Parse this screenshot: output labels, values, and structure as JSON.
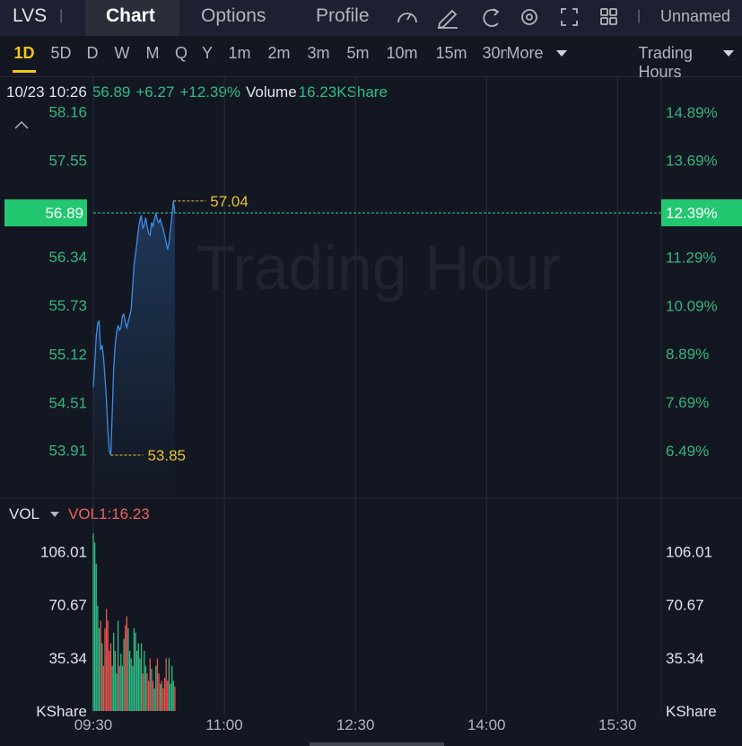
{
  "toolbar": {
    "symbol": "LVS",
    "tabs": [
      "Chart",
      "Options",
      "Profile"
    ],
    "layout_name": "Unnamed"
  },
  "periods": {
    "items": [
      "1D",
      "5D",
      "D",
      "W",
      "M",
      "Q",
      "Y",
      "1m",
      "2m",
      "3m",
      "5m",
      "10m",
      "15m",
      "30m"
    ],
    "more": "More",
    "session": "Trading Hours"
  },
  "quote": {
    "datetime": "10/23 10:26",
    "price": "56.89",
    "change": "+6.27",
    "change_pct": "+12.39%",
    "volume_label": "Volume",
    "volume": "16.23KShare"
  },
  "chart_data": [
    {
      "type": "line",
      "watermark": "Trading Hour",
      "color": "#3d8de6",
      "grid": true,
      "x": [
        "09:30",
        "09:31",
        "09:32",
        "09:33",
        "09:34",
        "09:35",
        "09:36",
        "09:37",
        "09:38",
        "09:39",
        "09:40",
        "09:41",
        "09:42",
        "09:43",
        "09:44",
        "09:45",
        "09:46",
        "09:47",
        "09:48",
        "09:49",
        "09:50",
        "09:51",
        "09:52",
        "09:53",
        "09:54",
        "09:55",
        "09:56",
        "09:57",
        "09:58",
        "09:59",
        "10:00",
        "10:01",
        "10:02",
        "10:03",
        "10:04",
        "10:05",
        "10:06",
        "10:07",
        "10:08",
        "10:09",
        "10:10",
        "10:11",
        "10:12",
        "10:13",
        "10:14",
        "10:15",
        "10:16",
        "10:17",
        "10:18",
        "10:19",
        "10:20",
        "10:21",
        "10:22",
        "10:23",
        "10:24",
        "10:25",
        "10:26"
      ],
      "values": [
        54.7,
        55.0,
        55.34,
        55.51,
        55.53,
        55.17,
        55.23,
        55.08,
        54.83,
        54.55,
        54.16,
        53.9,
        53.85,
        54.38,
        54.94,
        55.23,
        55.39,
        55.48,
        55.42,
        55.45,
        55.6,
        55.62,
        55.51,
        55.45,
        55.53,
        55.6,
        55.68,
        55.96,
        56.24,
        56.38,
        56.52,
        56.69,
        56.8,
        56.86,
        56.69,
        56.74,
        56.83,
        56.72,
        56.63,
        56.61,
        56.77,
        56.72,
        56.82,
        56.88,
        56.8,
        56.77,
        56.81,
        56.74,
        56.69,
        56.61,
        56.52,
        56.43,
        56.52,
        56.69,
        56.86,
        57.04,
        56.89
      ],
      "xlim": [
        "09:30",
        "16:00"
      ],
      "xticks": [
        "09:30",
        "11:00",
        "12:30",
        "14:00",
        "15:30"
      ],
      "ylim": [
        53.31,
        58.57
      ],
      "yticks": [
        53.91,
        54.51,
        55.12,
        55.73,
        56.34,
        57.55,
        58.16
      ],
      "y2lim": [
        5.31,
        15.71
      ],
      "y2ticks": [
        {
          "value": 6.49,
          "label": "6.49%"
        },
        {
          "value": 7.69,
          "label": "7.69%"
        },
        {
          "value": 8.89,
          "label": "8.89%"
        },
        {
          "value": 10.09,
          "label": "10.09%"
        },
        {
          "value": 11.29,
          "label": "11.29%"
        },
        {
          "value": 13.69,
          "label": "13.69%"
        },
        {
          "value": 14.89,
          "label": "14.89%"
        }
      ],
      "high": {
        "x": "10:25",
        "value": 57.04
      },
      "low": {
        "x": "09:42",
        "value": 53.85
      },
      "last": {
        "value": 56.89,
        "pct": {
          "value": 12.39,
          "label": "12.39%"
        }
      }
    },
    {
      "type": "bar",
      "indicator": "VOL",
      "indicator_label": "VOL1:16.23",
      "up_color": "#2ebd85",
      "down_color": "#ef5350",
      "x": [
        "09:30",
        "09:31",
        "09:32",
        "09:33",
        "09:34",
        "09:35",
        "09:36",
        "09:37",
        "09:38",
        "09:39",
        "09:40",
        "09:41",
        "09:42",
        "09:43",
        "09:44",
        "09:45",
        "09:46",
        "09:47",
        "09:48",
        "09:49",
        "09:50",
        "09:51",
        "09:52",
        "09:53",
        "09:54",
        "09:55",
        "09:56",
        "09:57",
        "09:58",
        "09:59",
        "10:00",
        "10:01",
        "10:02",
        "10:03",
        "10:04",
        "10:05",
        "10:06",
        "10:07",
        "10:08",
        "10:09",
        "10:10",
        "10:11",
        "10:12",
        "10:13",
        "10:14",
        "10:15",
        "10:16",
        "10:17",
        "10:18",
        "10:19",
        "10:20",
        "10:21",
        "10:22",
        "10:23",
        "10:24",
        "10:25",
        "10:26"
      ],
      "values": [
        118,
        112,
        98,
        70,
        55,
        60,
        45,
        30,
        55,
        68,
        60,
        40,
        45,
        30,
        52,
        40,
        25,
        60,
        30,
        38,
        30,
        48,
        57,
        63,
        55,
        40,
        35,
        30,
        55,
        52,
        40,
        45,
        35,
        45,
        25,
        40,
        30,
        25,
        20,
        35,
        28,
        20,
        15,
        30,
        35,
        25,
        18,
        20,
        15,
        22,
        35,
        20,
        35,
        18,
        30,
        20,
        16.23
      ],
      "xlim": [
        "09:30",
        "16:00"
      ],
      "xticks": [
        "09:30",
        "11:00",
        "12:30",
        "14:00",
        "15:30"
      ],
      "ylim": [
        0,
        120
      ],
      "yticks": [
        {
          "value": 0,
          "label": "KShare"
        },
        35.34,
        70.67,
        106.01
      ]
    }
  ]
}
